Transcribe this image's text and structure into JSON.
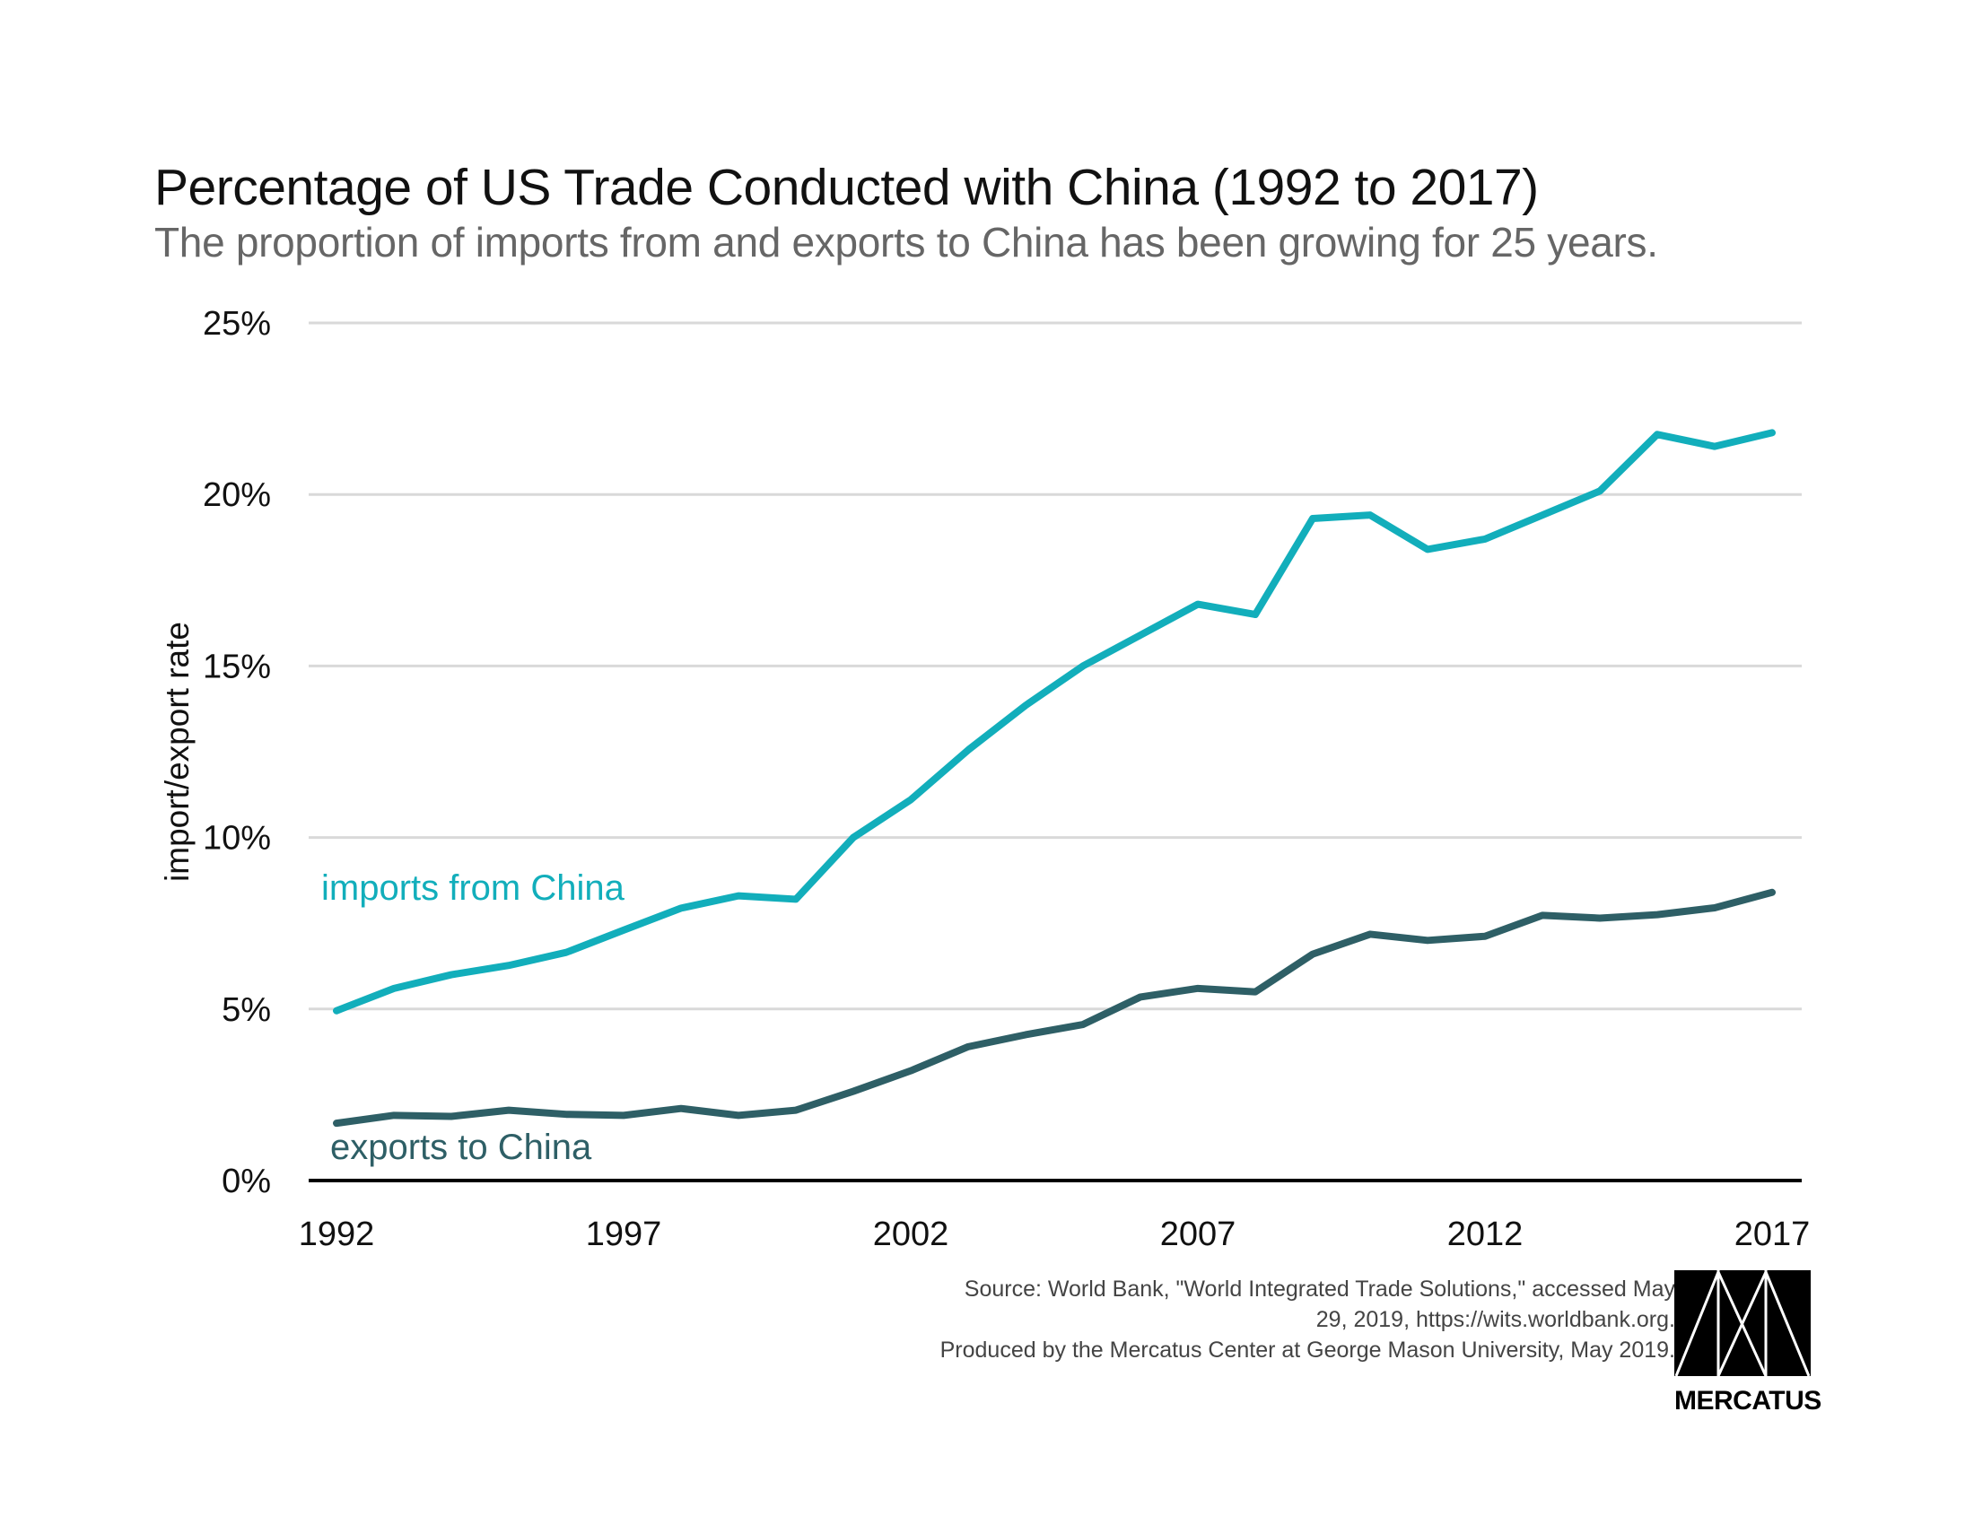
{
  "header": {
    "title": "Percentage of US Trade Conducted with China (1992 to 2017)",
    "subtitle": "The proportion of imports from and exports to China has been growing for 25 years."
  },
  "footer": {
    "source_line1": "Source: World Bank, \"World Integrated Trade Solutions,\" accessed May",
    "source_line2": "29, 2019, https://wits.worldbank.org.",
    "produced_by": "Produced by the Mercatus Center at George Mason University, May 2019.",
    "logo_text": "MERCATUS"
  },
  "colors": {
    "imports": "#12AEBB",
    "exports": "#2E5F66",
    "grid": "#D9D9D9",
    "axis": "#000000"
  },
  "chart_data": {
    "type": "line",
    "title": "Percentage of US Trade Conducted with China (1992 to 2017)",
    "subtitle": "The proportion of imports from and exports to China has been growing for 25 years.",
    "xlabel": "",
    "ylabel": "import/export rate",
    "x": [
      1992,
      1993,
      1994,
      1995,
      1996,
      1997,
      1998,
      1999,
      2000,
      2001,
      2002,
      2003,
      2004,
      2005,
      2006,
      2007,
      2008,
      2009,
      2010,
      2011,
      2012,
      2013,
      2014,
      2015,
      2016,
      2017
    ],
    "xlim": [
      1992,
      2017
    ],
    "xticks": [
      1992,
      1997,
      2002,
      2007,
      2012,
      2017
    ],
    "xtick_labels": [
      "1992",
      "1997",
      "2002",
      "2007",
      "2012",
      "2017"
    ],
    "ylim": [
      0,
      25
    ],
    "yticks": [
      0,
      5,
      10,
      15,
      20,
      25
    ],
    "ytick_labels": [
      "0%",
      "5%",
      "10%",
      "15%",
      "20%",
      "25%"
    ],
    "grid": true,
    "legend": "inline-labels",
    "series": [
      {
        "name": "imports from China",
        "label": "imports from China",
        "values": [
          4.95,
          5.6,
          6.0,
          6.27,
          6.65,
          7.3,
          7.94,
          8.3,
          8.2,
          10.0,
          11.1,
          12.55,
          13.85,
          15.0,
          15.9,
          16.8,
          16.5,
          19.3,
          19.4,
          18.4,
          18.7,
          19.4,
          20.1,
          21.75,
          21.4,
          21.8
        ]
      },
      {
        "name": "exports to China",
        "label": "exports to China",
        "values": [
          1.67,
          1.9,
          1.87,
          2.05,
          1.93,
          1.9,
          2.1,
          1.9,
          2.05,
          2.6,
          3.2,
          3.9,
          4.25,
          4.55,
          5.35,
          5.6,
          5.5,
          6.6,
          7.18,
          7.0,
          7.12,
          7.73,
          7.65,
          7.75,
          7.95,
          8.4
        ]
      }
    ]
  }
}
